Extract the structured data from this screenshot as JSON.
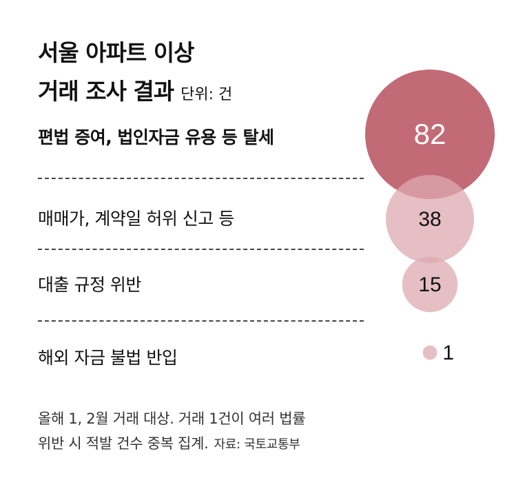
{
  "title_line1": "서울 아파트 이상",
  "title_line2": "거래 조사 결과",
  "unit": "단위: 건",
  "chart_data": {
    "type": "bubble",
    "categories": [
      "편법 증여, 법인자금 유용 등 탈세",
      "매매가, 계약일 허위 신고 등",
      "대출 규정 위반",
      "해외 자금 불법 반입"
    ],
    "values": [
      82,
      38,
      15,
      1
    ],
    "labels": [
      "82",
      "38",
      "15",
      "1"
    ],
    "colors": [
      "#b9505f",
      "#ddaab0",
      "#ddaab0",
      "#ddaab0"
    ]
  },
  "footnote_line1": "올해 1, 2월 거래 대상. 거래 1건이 여러 법률",
  "footnote_line2": "위반 시 적발 건수 중복 집계.",
  "source": "자료: 국토교통부"
}
